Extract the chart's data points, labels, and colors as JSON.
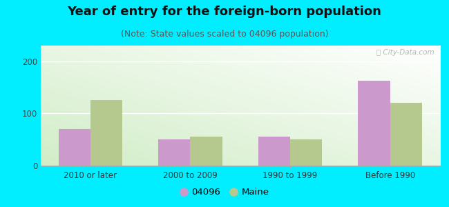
{
  "title": "Year of entry for the foreign-born population",
  "subtitle": "(Note: State values scaled to 04096 population)",
  "categories": [
    "2010 or later",
    "2000 to 2009",
    "1990 to 1999",
    "Before 1990"
  ],
  "values_04096": [
    70,
    50,
    55,
    163
  ],
  "values_maine": [
    125,
    55,
    50,
    120
  ],
  "bar_color_04096": "#cc99cc",
  "bar_color_maine": "#b5c98e",
  "background_outer": "#00eeff",
  "ylim": [
    0,
    230
  ],
  "yticks": [
    0,
    100,
    200
  ],
  "legend_label_04096": "04096",
  "legend_label_maine": "Maine",
  "bar_width": 0.32,
  "title_fontsize": 13,
  "subtitle_fontsize": 9,
  "tick_fontsize": 8.5,
  "legend_fontsize": 9.5
}
